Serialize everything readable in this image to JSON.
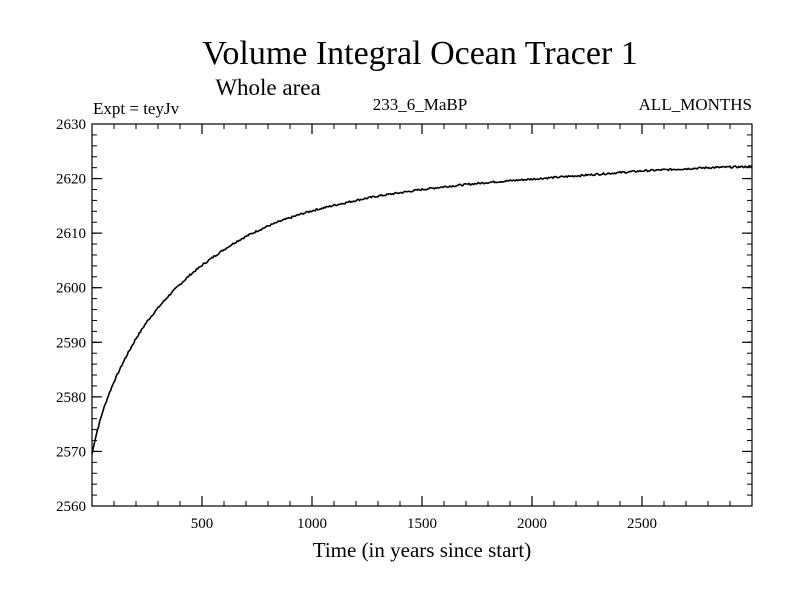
{
  "chart_data": {
    "type": "line",
    "title": "Volume Integral Ocean Tracer 1",
    "subtitle": "Whole area",
    "annotations": {
      "left": "Expt = teyJv",
      "center": "233_6_MaBP",
      "right": "ALL_MONTHS"
    },
    "xlabel": "Time (in years since start)",
    "ylabel": "",
    "xlim": [
      0,
      3000
    ],
    "ylim": [
      2560,
      2630
    ],
    "x_ticks": [
      500,
      1000,
      1500,
      2000,
      2500
    ],
    "x_minor_step": 100,
    "y_ticks": [
      2560,
      2570,
      2580,
      2590,
      2600,
      2610,
      2620,
      2630
    ],
    "y_minor_step": 2,
    "grid": false,
    "series": [
      {
        "name": "Volume Integral Ocean Tracer 1",
        "color": "#000000",
        "x": [
          0,
          10,
          25,
          50,
          75,
          100,
          150,
          200,
          250,
          300,
          350,
          400,
          450,
          500,
          550,
          600,
          650,
          700,
          750,
          800,
          850,
          900,
          950,
          1000,
          1100,
          1200,
          1300,
          1400,
          1500,
          1600,
          1700,
          1800,
          1900,
          2000,
          2100,
          2200,
          2300,
          2400,
          2500,
          2600,
          2700,
          2800,
          2900,
          3000
        ],
        "y": [
          2569.5,
          2571.5,
          2574.0,
          2577.5,
          2580.3,
          2582.8,
          2587.0,
          2590.7,
          2593.8,
          2596.3,
          2598.6,
          2600.6,
          2602.5,
          2604.1,
          2605.6,
          2607.0,
          2608.3,
          2609.4,
          2610.4,
          2611.3,
          2612.1,
          2612.8,
          2613.5,
          2614.1,
          2615.1,
          2616.0,
          2616.8,
          2617.4,
          2618.0,
          2618.5,
          2618.9,
          2619.3,
          2619.6,
          2619.9,
          2620.2,
          2620.5,
          2620.8,
          2621.1,
          2621.4,
          2621.6,
          2621.8,
          2622.0,
          2622.1,
          2622.2
        ]
      }
    ]
  }
}
